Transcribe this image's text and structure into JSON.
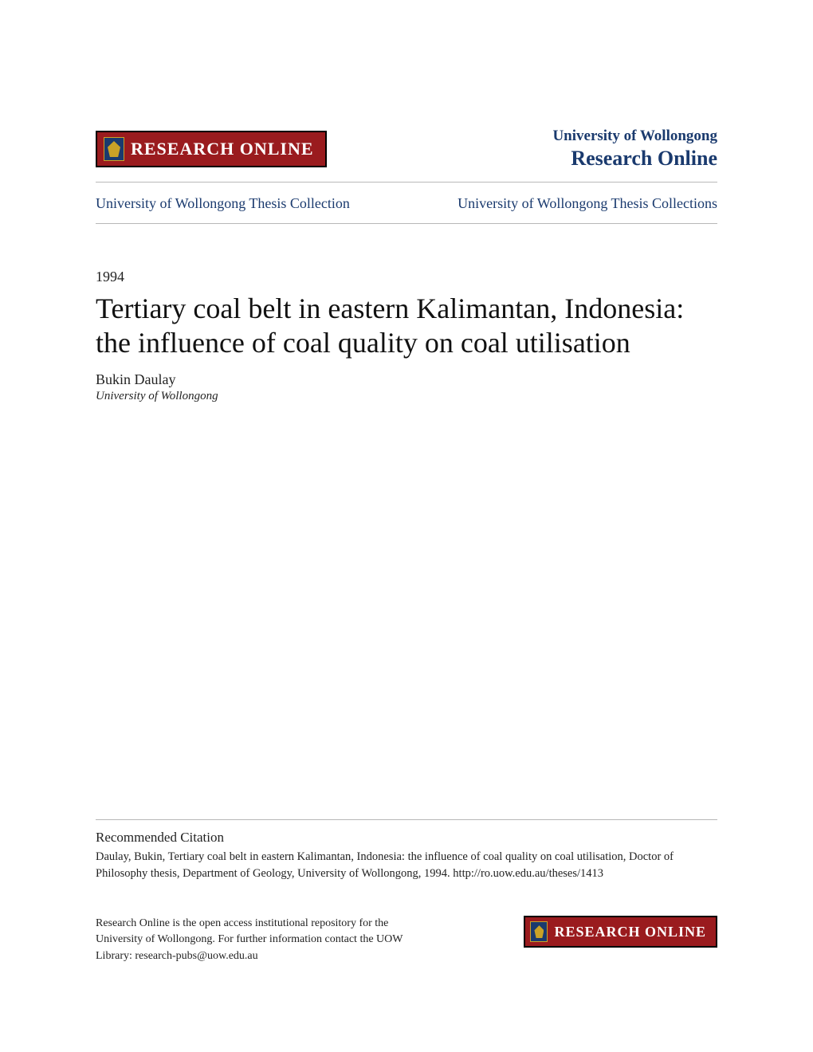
{
  "header": {
    "logo_text": "RESEARCH ONLINE",
    "institution": "University of Wollongong",
    "site_name": "Research Online"
  },
  "breadcrumb": {
    "left": "University of Wollongong Thesis Collection",
    "right": "University of Wollongong Thesis Collections"
  },
  "document": {
    "year": "1994",
    "title": "Tertiary coal belt in eastern Kalimantan, Indonesia: the influence of coal quality on coal utilisation",
    "author": "Bukin Daulay",
    "affiliation": "University of Wollongong"
  },
  "citation": {
    "heading": "Recommended Citation",
    "body": "Daulay, Bukin, Tertiary coal belt in eastern Kalimantan, Indonesia: the influence of coal quality on coal utilisation, Doctor of Philosophy thesis, Department of Geology, University of Wollongong, 1994. http://ro.uow.edu.au/theses/1413"
  },
  "footer": {
    "oa_statement": "Research Online is the open access institutional repository for the University of Wollongong. For further information contact the UOW Library: research-pubs@uow.edu.au",
    "logo_text": "RESEARCH ONLINE"
  },
  "colors": {
    "brand_red": "#9a1b1e",
    "brand_navy": "#1a3a6e",
    "rule_gray": "#b8b8b8",
    "text": "#222222",
    "background": "#ffffff"
  }
}
